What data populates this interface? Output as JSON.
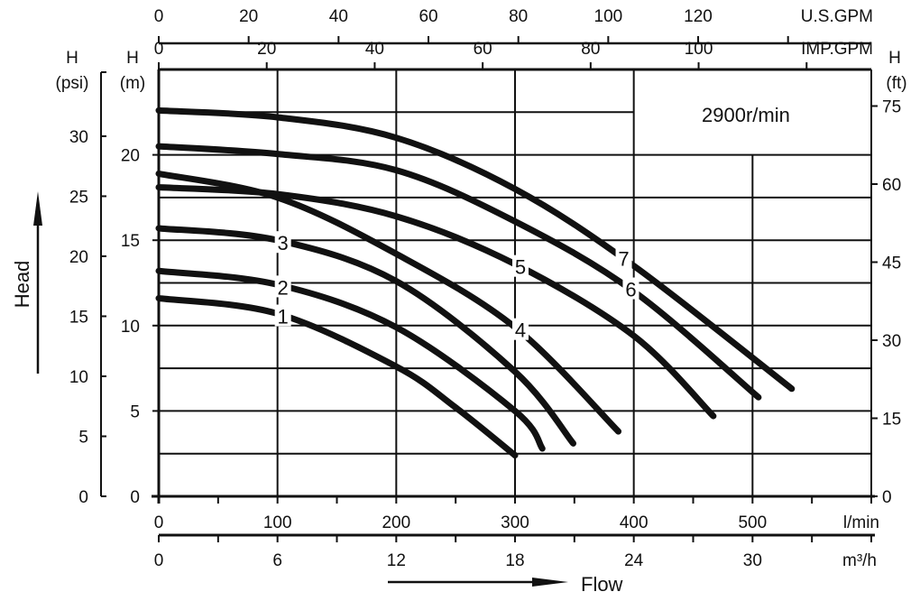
{
  "chart_data": {
    "type": "line",
    "title": "2900r/min",
    "xlabel": "Flow",
    "ylabel": "Head",
    "x_unit": "l/min",
    "y_unit": "m",
    "xlim": [
      0,
      600
    ],
    "ylim": [
      0,
      25
    ],
    "grid": true,
    "axes": {
      "x_lmin": {
        "label": "l/min",
        "ticks": [
          0,
          100,
          200,
          300,
          400,
          500
        ]
      },
      "x_m3h": {
        "label": "m³/h",
        "ticks": [
          0,
          6,
          12,
          18,
          24,
          30
        ]
      },
      "x_usgpm": {
        "label": "U.S.GPM",
        "ticks": [
          0,
          20,
          40,
          60,
          80,
          100,
          120
        ]
      },
      "x_impgpm": {
        "label": "IMP.GPM",
        "ticks": [
          0,
          20,
          40,
          60,
          80,
          100
        ]
      },
      "y_m": {
        "label_top": "H",
        "label_unit": "(m)",
        "ticks": [
          0,
          5,
          10,
          15,
          20
        ]
      },
      "y_psi": {
        "label_top": "H",
        "label_unit": "(psi)",
        "ticks": [
          0,
          5,
          10,
          15,
          20,
          25,
          30
        ]
      },
      "y_ft": {
        "label_top": "H",
        "label_unit": "(ft)",
        "ticks": [
          0,
          15,
          30,
          45,
          60,
          75
        ]
      }
    },
    "series": [
      {
        "name": "1",
        "points": [
          [
            0,
            11.6
          ],
          [
            100,
            10.7
          ],
          [
            200,
            7.6
          ],
          [
            250,
            5.2
          ],
          [
            300,
            2.4
          ]
        ],
        "label_at": 100
      },
      {
        "name": "2",
        "points": [
          [
            0,
            13.2
          ],
          [
            100,
            12.4
          ],
          [
            200,
            9.9
          ],
          [
            300,
            5.0
          ],
          [
            323,
            2.8
          ]
        ],
        "label_at": 100
      },
      {
        "name": "3",
        "points": [
          [
            0,
            15.7
          ],
          [
            100,
            15.0
          ],
          [
            200,
            12.6
          ],
          [
            300,
            7.3
          ],
          [
            349,
            3.1
          ]
        ],
        "label_at": 100
      },
      {
        "name": "4",
        "points": [
          [
            0,
            18.9
          ],
          [
            100,
            17.5
          ],
          [
            200,
            14.2
          ],
          [
            300,
            9.9
          ],
          [
            387,
            3.8
          ]
        ],
        "label_at": 300
      },
      {
        "name": "5",
        "points": [
          [
            0,
            18.1
          ],
          [
            100,
            17.7
          ],
          [
            200,
            16.4
          ],
          [
            300,
            13.6
          ],
          [
            400,
            9.4
          ],
          [
            467,
            4.7
          ]
        ],
        "label_at": 300
      },
      {
        "name": "6",
        "points": [
          [
            0,
            20.5
          ],
          [
            100,
            20.05
          ],
          [
            200,
            19.1
          ],
          [
            300,
            16.1
          ],
          [
            400,
            12.0
          ],
          [
            505,
            5.8
          ]
        ],
        "label_at": 393
      },
      {
        "name": "7",
        "points": [
          [
            0,
            22.6
          ],
          [
            100,
            22.2
          ],
          [
            200,
            21.0
          ],
          [
            300,
            18.0
          ],
          [
            400,
            13.5
          ],
          [
            533,
            6.3
          ]
        ],
        "label_at": 387
      }
    ]
  }
}
